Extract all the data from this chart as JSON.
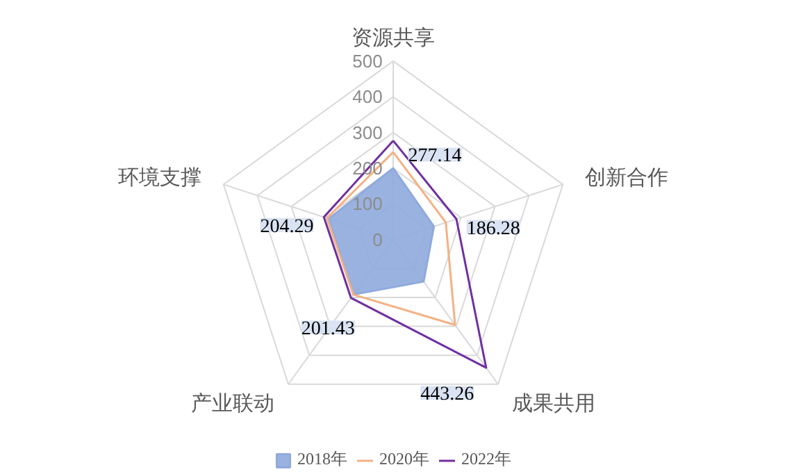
{
  "chart_data": {
    "type": "radar",
    "categories": [
      "资源共享",
      "创新合作",
      "成果共用",
      "产业联动",
      "环境支撑"
    ],
    "ylim": [
      0,
      500
    ],
    "yticks": [
      0,
      100,
      200,
      300,
      400,
      500
    ],
    "legend": "bottom",
    "grid": true,
    "series": [
      {
        "name": "2018年",
        "type": "area",
        "color": "#8faadc",
        "values": [
          200,
          120,
          145,
          190,
          190
        ]
      },
      {
        "name": "2020年",
        "color": "#f4b183",
        "values": [
          245,
          155,
          295,
          190,
          195
        ]
      },
      {
        "name": "2022年",
        "color": "#7030a0",
        "values": [
          277.14,
          186.28,
          443.26,
          201.43,
          204.29
        ],
        "value_labels": [
          "277.14",
          "186.28",
          "443.26",
          "201.43",
          "204.29"
        ]
      }
    ]
  }
}
